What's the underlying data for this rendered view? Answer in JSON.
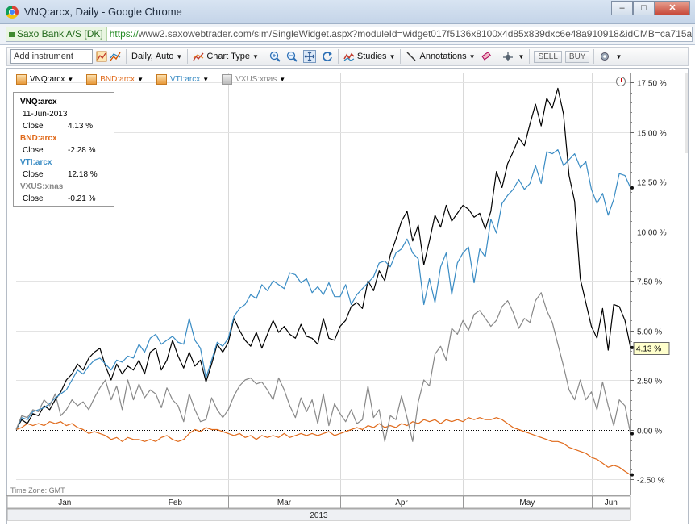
{
  "window": {
    "title": "VNQ:arcx, Daily - Google Chrome",
    "minimize": "–",
    "maximize": "□",
    "close": "✕"
  },
  "address": {
    "secure_label": "Saxo Bank A/S [DK]",
    "url_scheme": "https://",
    "url_rest": "www2.saxowebtrader.com/sim/SingleWidget.aspx?moduleId=widget017f5136x8100x4d85x839dxc6e48a910918&idCMB=ca715a6"
  },
  "toolbar": {
    "add_instrument": "Add instrument",
    "period": "Daily,",
    "scale": "Auto",
    "chart_type": "Chart Type",
    "studies": "Studies",
    "annotations": "Annotations",
    "sell": "SELL",
    "buy": "BUY",
    "icons": [
      "add-instrument-icon",
      "compare-icon",
      "chart-type-icon",
      "zoom-in-icon",
      "zoom-out-icon",
      "pan-icon",
      "refresh-icon",
      "studies-icon",
      "line-tool-icon",
      "eraser-icon",
      "crosshair-icon",
      "settings-icon"
    ]
  },
  "series_selector": [
    {
      "label": "VNQ:arcx",
      "color": "#000000"
    },
    {
      "label": "BND:arcx",
      "color": "#e06a1b"
    },
    {
      "label": "VTI:arcx",
      "color": "#3a8cc4"
    },
    {
      "label": "VXUS:xnas",
      "color": "#888888"
    }
  ],
  "legend": {
    "date": "11-Jun-2013",
    "close_label": "Close",
    "entries": [
      {
        "symbol": "VNQ:arcx",
        "value": "4.13 %",
        "color": "#000000"
      },
      {
        "symbol": "BND:arcx",
        "value": "-2.28 %",
        "color": "#e06a1b"
      },
      {
        "symbol": "VTI:arcx",
        "value": "12.18 %",
        "color": "#3a8cc4"
      },
      {
        "symbol": "VXUS:xnas",
        "value": "-0.21 %",
        "color": "#888888"
      }
    ]
  },
  "timezone": "Time Zone: GMT",
  "chart_data": {
    "type": "line",
    "x_unit": "trading day index (0 = 2-Jan-2013)",
    "yaxis_ticks": [
      17.5,
      15.0,
      12.5,
      10.0,
      7.5,
      5.0,
      2.5,
      0.0,
      -2.5
    ],
    "ytick_labels": [
      "17.50 %",
      "15.00 %",
      "12.50 %",
      "10.00 %",
      "7.50 %",
      "5.00 %",
      "2.50 %",
      "0.00 %",
      "-2.50 %"
    ],
    "ylim": [
      -2.8,
      18.1
    ],
    "xlim": [
      0,
      110
    ],
    "month_labels": [
      {
        "label": "Jan",
        "start": 0,
        "end": 19
      },
      {
        "label": "Feb",
        "start": 19,
        "end": 38
      },
      {
        "label": "Mar",
        "start": 38,
        "end": 58
      },
      {
        "label": "Apr",
        "start": 58,
        "end": 80
      },
      {
        "label": "May",
        "start": 80,
        "end": 103
      },
      {
        "label": "Jun",
        "start": 103,
        "end": 110
      }
    ],
    "year_label": "2013",
    "current_value_label": "4.13 %",
    "current_value": 4.13,
    "series": [
      {
        "name": "VNQ:arcx",
        "color": "#000000",
        "values": [
          0.0,
          0.5,
          0.3,
          0.8,
          0.7,
          1.2,
          1.0,
          1.5,
          1.9,
          2.5,
          2.8,
          3.3,
          3.0,
          3.6,
          3.9,
          4.1,
          3.2,
          2.5,
          3.3,
          2.8,
          3.2,
          3.0,
          3.5,
          2.8,
          3.9,
          4.1,
          3.0,
          3.5,
          4.5,
          3.7,
          3.1,
          3.9,
          3.2,
          3.5,
          2.4,
          3.3,
          4.3,
          3.9,
          4.4,
          5.6,
          5.0,
          4.5,
          4.2,
          4.9,
          4.1,
          4.8,
          5.5,
          4.9,
          5.2,
          4.8,
          4.6,
          5.3,
          4.7,
          4.6,
          4.3,
          5.6,
          4.6,
          4.5,
          5.2,
          5.5,
          6.2,
          6.4,
          6.1,
          7.5,
          7.0,
          8.0,
          7.5,
          8.8,
          9.6,
          10.5,
          11.0,
          9.5,
          10.3,
          8.3,
          9.5,
          10.8,
          10.2,
          11.3,
          10.5,
          10.9,
          11.3,
          11.1,
          10.7,
          10.9,
          10.1,
          11.0,
          13.0,
          12.2,
          13.4,
          14.0,
          14.7,
          14.3,
          15.4,
          16.4,
          15.3,
          16.7,
          16.2,
          17.2,
          15.9,
          12.8,
          11.5,
          7.6,
          6.4,
          5.2,
          4.6,
          6.1,
          4.0,
          6.3,
          6.2,
          5.5,
          4.13
        ]
      },
      {
        "name": "BND:arcx",
        "color": "#e06a1b",
        "values": [
          0.0,
          0.1,
          0.3,
          0.2,
          0.3,
          0.2,
          0.4,
          0.3,
          0.4,
          0.2,
          0.3,
          0.1,
          0.0,
          -0.2,
          -0.1,
          -0.2,
          -0.3,
          -0.5,
          -0.4,
          -0.6,
          -0.4,
          -0.5,
          -0.5,
          -0.6,
          -0.5,
          -0.6,
          -0.4,
          -0.3,
          -0.5,
          -0.6,
          -0.5,
          -0.2,
          0.0,
          -0.1,
          0.1,
          0.0,
          0.0,
          -0.1,
          -0.2,
          -0.3,
          -0.2,
          -0.4,
          -0.3,
          -0.5,
          -0.3,
          -0.4,
          -0.3,
          -0.4,
          -0.2,
          -0.4,
          -0.3,
          -0.2,
          -0.3,
          -0.2,
          -0.3,
          -0.2,
          -0.1,
          -0.3,
          -0.2,
          -0.1,
          0.0,
          0.1,
          0.0,
          0.2,
          0.1,
          0.3,
          0.1,
          0.2,
          0.1,
          0.3,
          0.2,
          0.4,
          0.3,
          0.5,
          0.4,
          0.5,
          0.3,
          0.5,
          0.4,
          0.5,
          0.4,
          0.6,
          0.5,
          0.6,
          0.5,
          0.5,
          0.6,
          0.5,
          0.3,
          0.1,
          0.0,
          -0.1,
          -0.2,
          -0.3,
          -0.4,
          -0.5,
          -0.6,
          -0.6,
          -0.7,
          -0.9,
          -1.0,
          -1.1,
          -1.2,
          -1.4,
          -1.5,
          -1.7,
          -1.9,
          -1.8,
          -1.9,
          -2.1,
          -2.28
        ]
      },
      {
        "name": "VTI:arcx",
        "color": "#3a8cc4",
        "values": [
          0.0,
          0.6,
          0.5,
          0.9,
          1.0,
          1.1,
          1.3,
          1.6,
          1.8,
          2.0,
          2.5,
          3.0,
          2.8,
          3.2,
          3.5,
          3.6,
          3.3,
          3.0,
          3.5,
          3.4,
          3.7,
          3.6,
          4.3,
          3.9,
          4.6,
          4.8,
          4.3,
          4.5,
          4.7,
          4.4,
          4.3,
          5.6,
          4.5,
          4.1,
          2.6,
          3.5,
          4.4,
          4.2,
          4.6,
          5.7,
          6.1,
          6.3,
          6.8,
          6.6,
          7.3,
          7.0,
          7.5,
          7.3,
          7.1,
          7.9,
          7.8,
          7.4,
          7.6,
          6.9,
          7.2,
          6.8,
          7.4,
          6.7,
          6.7,
          7.3,
          6.3,
          6.8,
          7.1,
          7.4,
          7.7,
          8.4,
          8.5,
          8.2,
          8.9,
          9.1,
          9.6,
          8.9,
          8.6,
          6.3,
          7.6,
          6.4,
          8.2,
          8.9,
          6.8,
          8.4,
          8.9,
          9.2,
          7.4,
          9.1,
          8.7,
          10.6,
          9.9,
          11.4,
          11.8,
          12.1,
          12.6,
          12.1,
          12.4,
          13.3,
          12.4,
          14.0,
          13.9,
          14.1,
          13.3,
          13.6,
          13.9,
          13.2,
          13.5,
          12.1,
          11.4,
          11.9,
          10.8,
          11.6,
          12.9,
          12.8,
          12.18
        ]
      },
      {
        "name": "VXUS:xnas",
        "color": "#888888",
        "values": [
          0.0,
          0.7,
          0.6,
          1.0,
          0.9,
          1.5,
          1.2,
          1.8,
          0.7,
          1.0,
          1.5,
          1.2,
          1.4,
          1.0,
          1.6,
          2.1,
          2.5,
          1.5,
          2.2,
          1.0,
          2.5,
          1.5,
          2.3,
          1.6,
          2.0,
          1.8,
          1.1,
          2.1,
          1.5,
          1.2,
          0.4,
          1.8,
          1.0,
          0.4,
          0.5,
          1.6,
          1.0,
          0.6,
          1.0,
          1.7,
          2.2,
          2.5,
          2.6,
          2.3,
          2.4,
          2.0,
          1.5,
          2.6,
          2.0,
          1.2,
          0.6,
          1.6,
          0.9,
          1.5,
          0.3,
          1.8,
          0.2,
          1.3,
          0.8,
          0.4,
          1.0,
          0.3,
          0.5,
          2.2,
          0.6,
          1.0,
          -0.6,
          0.7,
          0.5,
          1.7,
          0.6,
          -0.6,
          1.4,
          2.5,
          2.2,
          3.8,
          4.2,
          3.5,
          5.1,
          4.8,
          5.5,
          5.0,
          5.8,
          6.0,
          5.6,
          5.2,
          5.5,
          6.2,
          6.5,
          5.9,
          5.1,
          5.6,
          5.4,
          6.5,
          6.9,
          6.0,
          5.4,
          4.3,
          3.2,
          2.0,
          1.5,
          2.5,
          1.5,
          1.9,
          1.0,
          2.4,
          1.2,
          0.2,
          1.5,
          1.2,
          -0.21
        ]
      }
    ]
  }
}
